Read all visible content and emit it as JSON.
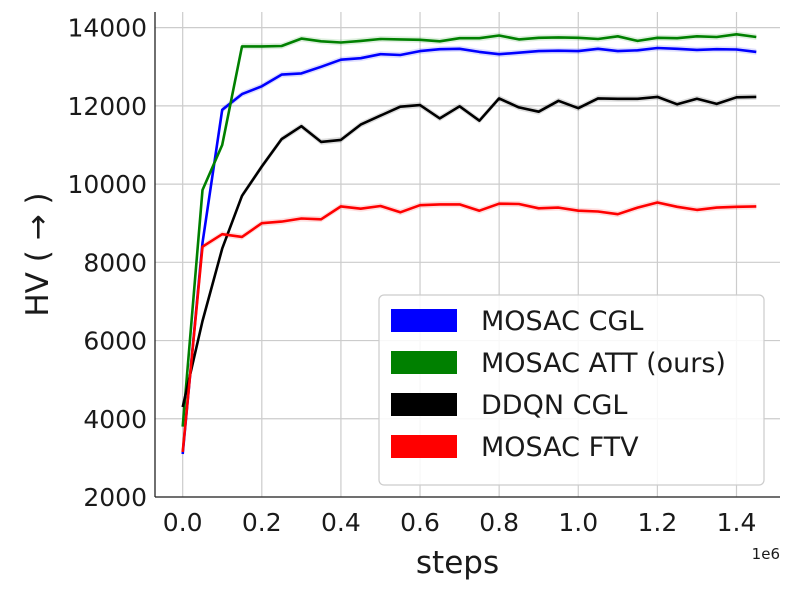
{
  "chart_data": {
    "type": "line",
    "xlabel": "steps",
    "ylabel": "HV ( → )",
    "x_offset_label": "1e6",
    "xlim": [
      -0.07,
      1.51
    ],
    "ylim": [
      2000,
      14400
    ],
    "xticks": [
      0.0,
      0.2,
      0.4,
      0.6,
      0.8,
      1.0,
      1.2,
      1.4
    ],
    "xtick_labels": [
      "0.0",
      "0.2",
      "0.4",
      "0.6",
      "0.8",
      "1.0",
      "1.2",
      "1.4"
    ],
    "yticks": [
      2000,
      4000,
      6000,
      8000,
      10000,
      12000,
      14000
    ],
    "ytick_labels": [
      "2000",
      "4000",
      "6000",
      "8000",
      "10000",
      "12000",
      "14000"
    ],
    "grid": true,
    "legend_position": "lower-right",
    "x": [
      0.0,
      0.05,
      0.1,
      0.15,
      0.2,
      0.25,
      0.3,
      0.35,
      0.4,
      0.45,
      0.5,
      0.55,
      0.6,
      0.65,
      0.7,
      0.75,
      0.8,
      0.85,
      0.9,
      0.95,
      1.0,
      1.05,
      1.1,
      1.15,
      1.2,
      1.25,
      1.3,
      1.35,
      1.4,
      1.45
    ],
    "series": [
      {
        "name": "MOSAC CGL",
        "color": "#0000ff",
        "values": [
          3100,
          8500,
          11900,
          12300,
          12500,
          12800,
          12830,
          13000,
          13180,
          13220,
          13320,
          13300,
          13400,
          13450,
          13460,
          13380,
          13320,
          13360,
          13400,
          13410,
          13400,
          13460,
          13400,
          13420,
          13480,
          13460,
          13430,
          13450,
          13440,
          13380
        ]
      },
      {
        "name": "MOSAC ATT (ours)",
        "color": "#008000",
        "values": [
          3800,
          9850,
          11000,
          13520,
          13520,
          13530,
          13720,
          13650,
          13620,
          13660,
          13710,
          13700,
          13690,
          13650,
          13730,
          13730,
          13800,
          13700,
          13740,
          13750,
          13740,
          13710,
          13780,
          13660,
          13740,
          13730,
          13780,
          13760,
          13830,
          13760
        ]
      },
      {
        "name": "DDQN CGL",
        "color": "#000000",
        "values": [
          4300,
          6500,
          8350,
          9700,
          10450,
          11150,
          11480,
          11080,
          11130,
          11520,
          11750,
          11980,
          12020,
          11680,
          11990,
          11620,
          12190,
          11960,
          11850,
          12130,
          11940,
          12190,
          12180,
          12180,
          12230,
          12040,
          12180,
          12050,
          12220,
          12230
        ]
      },
      {
        "name": "MOSAC FTV",
        "color": "#ff0000",
        "values": [
          3150,
          8400,
          8720,
          8650,
          9000,
          9040,
          9120,
          9100,
          9430,
          9370,
          9440,
          9280,
          9460,
          9480,
          9480,
          9320,
          9500,
          9490,
          9380,
          9400,
          9320,
          9300,
          9230,
          9400,
          9530,
          9420,
          9340,
          9400,
          9420,
          9430
        ]
      }
    ]
  }
}
